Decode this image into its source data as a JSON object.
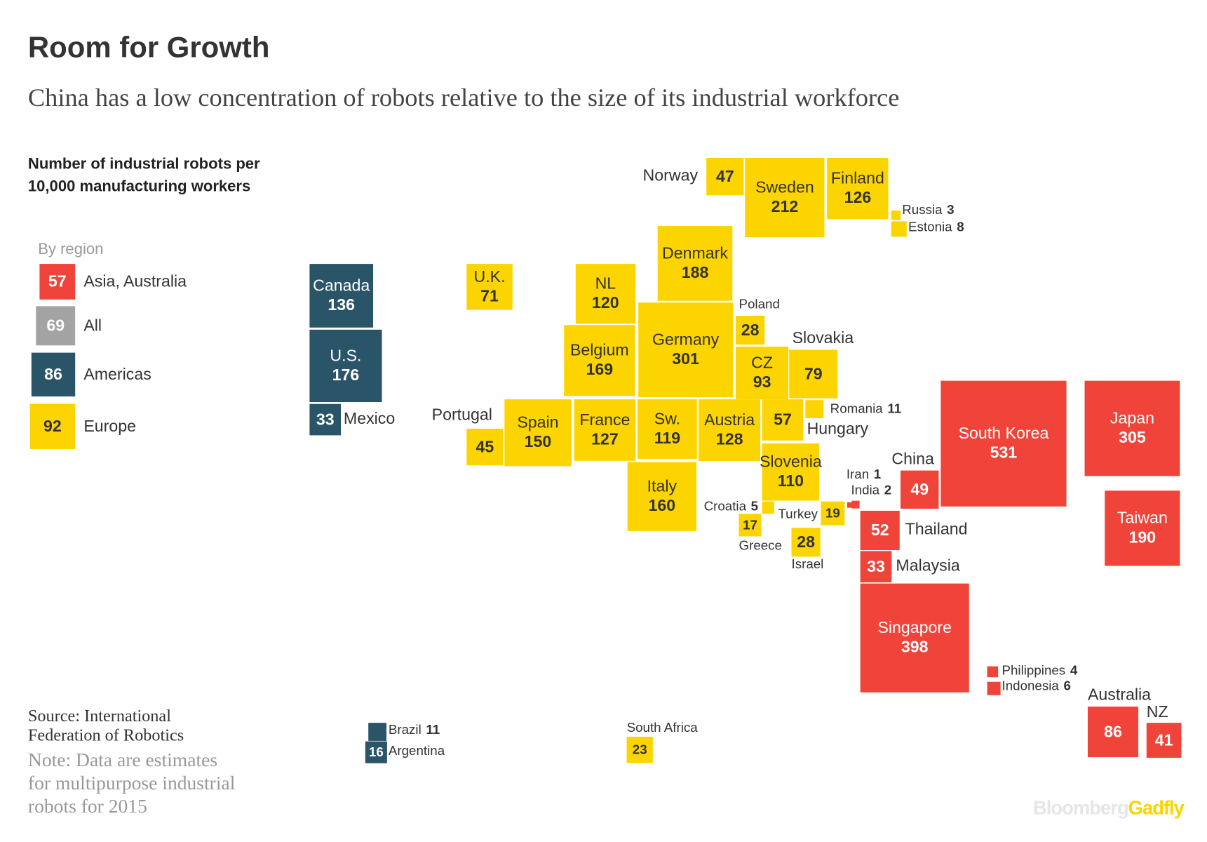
{
  "chart_data": {
    "type": "proportional-squares",
    "title": "Room for Growth",
    "subtitle": "China has a low concentration of robots relative to the size of its industrial workforce",
    "measure": [
      "Number of industrial robots per",
      "10,000 manufacturing workers"
    ],
    "legend_title": "By region",
    "all": {
      "name": "All",
      "value": 69,
      "color": "#a3a3a3"
    },
    "series": [
      {
        "name": "Asia, Australia",
        "color": "#f0443a",
        "average": 57,
        "categories": [
          "Iran",
          "India",
          "China",
          "South Korea",
          "Japan",
          "Taiwan",
          "Thailand",
          "Malaysia",
          "Singapore",
          "Philippines",
          "Indonesia",
          "Australia",
          "NZ"
        ],
        "values": [
          1,
          2,
          49,
          531,
          305,
          190,
          52,
          33,
          398,
          4,
          6,
          86,
          41
        ]
      },
      {
        "name": "Americas",
        "color": "#2a5468",
        "average": 86,
        "categories": [
          "Canada",
          "U.S.",
          "Mexico",
          "Brazil",
          "Argentina"
        ],
        "values": [
          136,
          176,
          33,
          11,
          16
        ]
      },
      {
        "name": "Europe",
        "color": "#fcd400",
        "average": 92,
        "categories": [
          "Norway",
          "Sweden",
          "Finland",
          "Russia",
          "Estonia",
          "Denmark",
          "U.K.",
          "NL",
          "Poland",
          "Belgium",
          "Germany",
          "CZ",
          "Slovakia",
          "Portugal",
          "Spain",
          "France",
          "Sw.",
          "Austria",
          "Hungary",
          "Romania",
          "Slovenia",
          "Italy",
          "Croatia",
          "Greece",
          "Turkey",
          "Israel",
          "South Africa"
        ],
        "values": [
          47,
          212,
          126,
          3,
          8,
          188,
          71,
          120,
          28,
          169,
          301,
          93,
          79,
          45,
          150,
          127,
          119,
          128,
          57,
          11,
          110,
          160,
          5,
          17,
          19,
          28,
          23
        ]
      }
    ],
    "source": [
      "Source: International",
      "Federation of Robotics"
    ],
    "note": [
      "Note: Data are estimates",
      "for multipurpose industrial",
      "robots for 2015"
    ],
    "logo": {
      "brand": "Bloomberg",
      "product": "Gadfly"
    }
  }
}
